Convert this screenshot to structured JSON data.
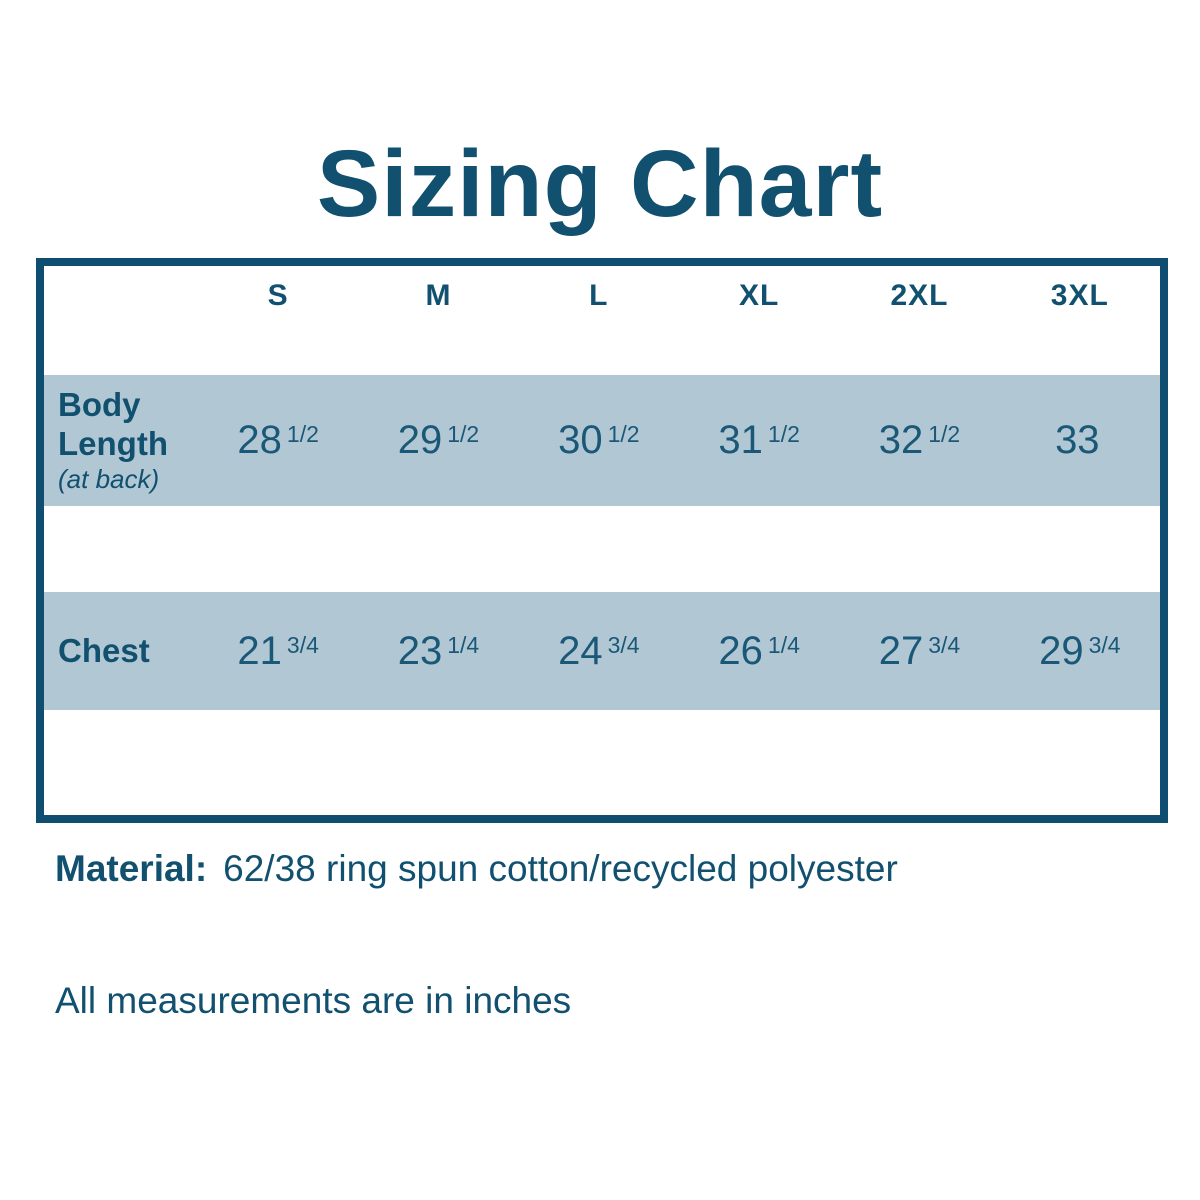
{
  "title": "Sizing Chart",
  "colors": {
    "dark_blue": "#11506f",
    "border_blue": "#0f4e70",
    "value_text_blue": "#1b5878",
    "band_light_blue": "#b1c8d4",
    "background": "#ffffff"
  },
  "chart_data": {
    "type": "table",
    "title": "Sizing Chart",
    "columns": [
      "S",
      "M",
      "L",
      "XL",
      "2XL",
      "3XL"
    ],
    "rows": [
      {
        "label": "Body Length",
        "sublabel": "(at back)",
        "values": [
          "28",
          "29",
          "30",
          "31",
          "32",
          "33"
        ],
        "fractions": [
          "1/2",
          "1/2",
          "1/2",
          "1/2",
          "1/2",
          ""
        ]
      },
      {
        "label": "Chest",
        "sublabel": "",
        "values": [
          "21",
          "23",
          "24",
          "26",
          "27",
          "29"
        ],
        "fractions": [
          "3/4",
          "1/4",
          "3/4",
          "1/4",
          "3/4",
          "3/4"
        ]
      }
    ],
    "units": "inches"
  },
  "material": {
    "label": "Material:",
    "value": "62/38 ring spun cotton/recycled polyester"
  },
  "footnote": "All measurements are in inches"
}
